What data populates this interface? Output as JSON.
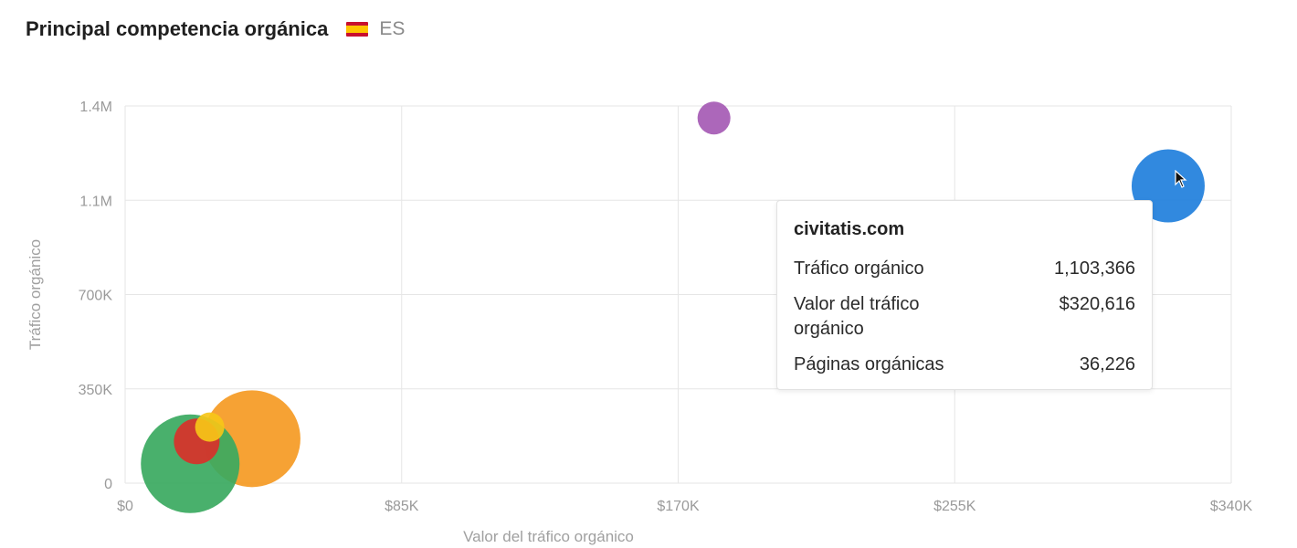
{
  "header": {
    "title": "Principal competencia orgánica",
    "country_code": "ES",
    "flag_icon": "spain-flag-icon"
  },
  "chart_data": {
    "type": "scatter",
    "xlabel": "Valor del tráfico orgánico",
    "ylabel": "Tráfico orgánico",
    "xlim": [
      0,
      340000
    ],
    "ylim": [
      0,
      1400000
    ],
    "x_ticks": [
      {
        "value": 0,
        "label": "$0"
      },
      {
        "value": 85000,
        "label": "$85K"
      },
      {
        "value": 170000,
        "label": "$170K"
      },
      {
        "value": 255000,
        "label": "$255K"
      },
      {
        "value": 340000,
        "label": "$340K"
      }
    ],
    "y_ticks": [
      {
        "value": 0,
        "label": "0"
      },
      {
        "value": 350000,
        "label": "350K"
      },
      {
        "value": 700000,
        "label": "700K"
      },
      {
        "value": 1050000,
        "label": "1.1M"
      },
      {
        "value": 1400000,
        "label": "1.4M"
      }
    ],
    "grid": true,
    "points": [
      {
        "x": 39000,
        "y": 165000,
        "r": 53,
        "color": "#f59a23"
      },
      {
        "x": 20000,
        "y": 72000,
        "r": 54,
        "color": "#3aa960"
      },
      {
        "x": 22000,
        "y": 155000,
        "r": 25,
        "color": "#d9312a"
      },
      {
        "x": 26000,
        "y": 208000,
        "r": 16,
        "color": "#f6c518"
      },
      {
        "x": 181000,
        "y": 1355000,
        "r": 18,
        "color": "#a55ab4"
      },
      {
        "x": 320616,
        "y": 1103366,
        "r": 40,
        "color": "#1f7fdc"
      }
    ]
  },
  "tooltip": {
    "domain": "civitatis.com",
    "rows": [
      {
        "label": "Tráfico orgánico",
        "value": "1,103,366"
      },
      {
        "label": "Valor del tráfico orgánico",
        "value": "$320,616"
      },
      {
        "label": "Páginas orgánicas",
        "value": "36,226"
      }
    ]
  }
}
